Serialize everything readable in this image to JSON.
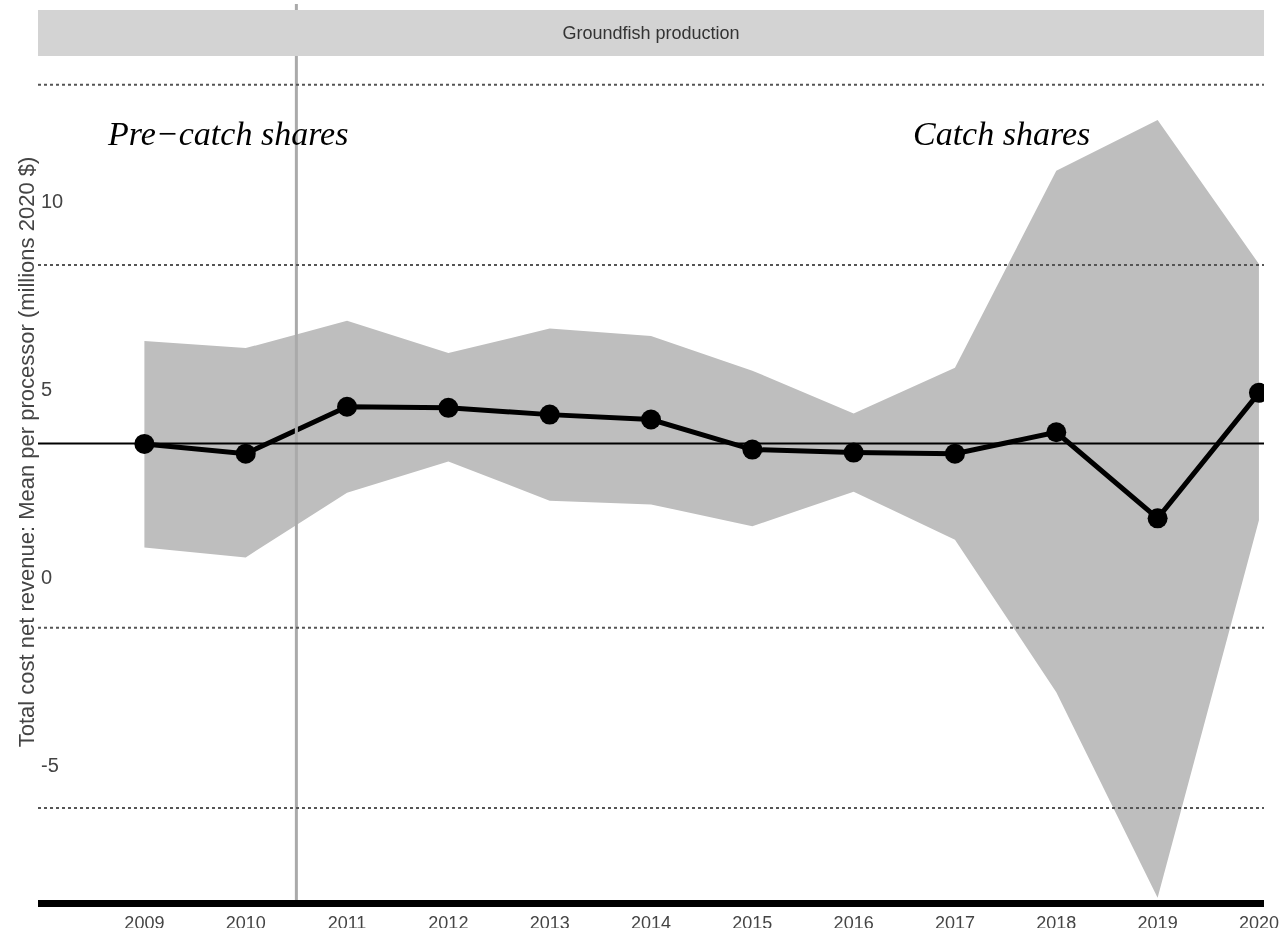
{
  "chart_data": {
    "type": "line",
    "title": "Groundfish production",
    "ylabel": "Total cost net revenue: Mean per processor (millions 2020 $)",
    "annotations": [
      "Pre−catch shares",
      "Catch shares"
    ],
    "x": [
      2009,
      2010,
      2011,
      2012,
      2013,
      2014,
      2015,
      2016,
      2017,
      2018,
      2019,
      2020
    ],
    "xlim": [
      2007.95,
      2020.05
    ],
    "xticks": [
      2009,
      2010,
      2011,
      2012,
      2013,
      2014,
      2015,
      2016,
      2017,
      2018,
      2019,
      2020
    ],
    "ylim": [
      -8.6,
      15.25
    ],
    "yticks": [
      -5,
      0,
      5,
      10
    ],
    "series": [
      {
        "color": "#000000",
        "values": [
          3.54,
          3.28,
          4.53,
          4.5,
          4.32,
          4.19,
          3.39,
          3.31,
          3.28,
          3.85,
          1.56,
          4.9
        ],
        "lower": [
          0.78,
          0.52,
          2.24,
          3.07,
          2.03,
          1.93,
          1.35,
          2.27,
          0.99,
          -3.07,
          -8.54,
          1.51
        ],
        "upper": [
          6.28,
          6.09,
          6.82,
          5.96,
          6.61,
          6.41,
          5.49,
          4.35,
          5.57,
          10.81,
          12.16,
          8.33
        ]
      }
    ],
    "ref_lines": [
      {
        "axis": "x",
        "value": 2010.5,
        "color": "#aaaaaa",
        "line_style": "solid"
      },
      {
        "axis": "y",
        "value": 3.55,
        "color": "#000000",
        "line_style": "solid"
      },
      {
        "axis": "y",
        "value": 13.1,
        "color": "#555555",
        "line_style": "dotted"
      },
      {
        "axis": "y",
        "value": 8.3,
        "color": "#555555",
        "line_style": "dotted"
      },
      {
        "axis": "y",
        "value": -1.35,
        "color": "#555555",
        "line_style": "dotted"
      },
      {
        "axis": "y",
        "value": -6.15,
        "color": "#555555",
        "line_style": "dotted"
      }
    ],
    "marker": "circle",
    "line_style": "solid",
    "grid": false
  }
}
